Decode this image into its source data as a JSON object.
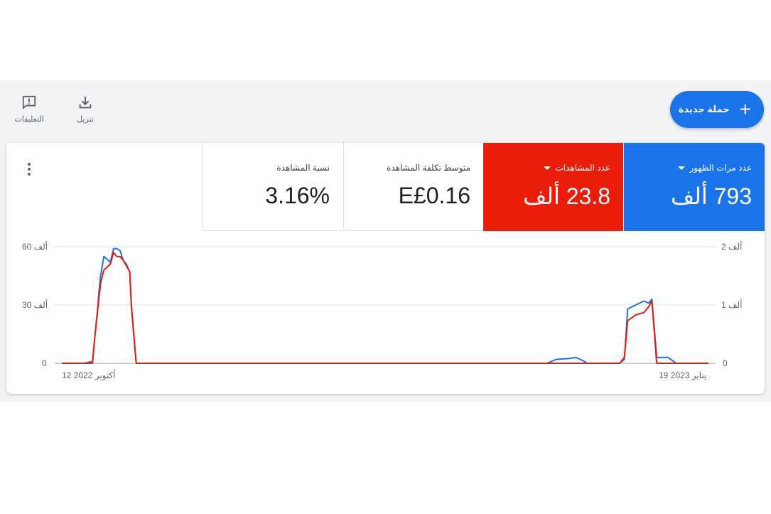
{
  "toolbar": {
    "new_campaign_label": "حملة جديدة",
    "download_label": "تنزيل",
    "feedback_label": "التعليقات"
  },
  "metrics": [
    {
      "label": "عدد مرات الظهور",
      "value": "793 ألف",
      "color": "#1a73e8",
      "has_dropdown": true
    },
    {
      "label": "عدد المشاهدات",
      "value": "23.8 ألف",
      "color": "#ea1c0a",
      "has_dropdown": true
    },
    {
      "label": "متوسط تكلفة المشاهدة",
      "value": "E£0.16"
    },
    {
      "label": "نسبة المشاهدة",
      "value": "3.16%"
    }
  ],
  "chart_data": {
    "type": "line",
    "x_start_label": "12 أكتوبر 2022",
    "x_end_label": "19 يناير 2023",
    "left_axis_ticks": [
      "60 ألف",
      "30 ألف",
      "0"
    ],
    "right_axis_ticks": [
      "2 ألف",
      "1 ألف",
      "0"
    ],
    "left_ylim": [
      0,
      60000
    ],
    "right_ylim": [
      0,
      2000
    ],
    "series": [
      {
        "axis": "left",
        "color": "#1a73e8",
        "points": [
          [
            0,
            0
          ],
          [
            14,
            0
          ],
          [
            19,
            1000
          ],
          [
            20,
            10000
          ],
          [
            22,
            27000
          ],
          [
            23,
            37000
          ],
          [
            24,
            45000
          ],
          [
            26,
            55000
          ],
          [
            30,
            52000
          ],
          [
            32,
            59000
          ],
          [
            34,
            59000
          ],
          [
            36,
            58000
          ],
          [
            38,
            53000
          ],
          [
            40,
            51000
          ],
          [
            42,
            47000
          ],
          [
            43,
            30000
          ],
          [
            45,
            10000
          ],
          [
            46,
            0
          ],
          [
            300,
            0
          ],
          [
            306,
            2000
          ],
          [
            314,
            2500
          ],
          [
            318,
            3000
          ],
          [
            322,
            1500
          ],
          [
            325,
            0
          ],
          [
            345,
            0
          ],
          [
            348,
            2000
          ],
          [
            350,
            28000
          ],
          [
            355,
            30000
          ],
          [
            360,
            32000
          ],
          [
            363,
            31000
          ],
          [
            365,
            33000
          ],
          [
            368,
            3000
          ],
          [
            375,
            3000
          ],
          [
            380,
            0
          ],
          [
            400,
            0
          ]
        ]
      },
      {
        "axis": "right",
        "color": "#ea1c0a",
        "points": [
          [
            0,
            0
          ],
          [
            14,
            0
          ],
          [
            19,
            0
          ],
          [
            20,
            330
          ],
          [
            22,
            870
          ],
          [
            23,
            1130
          ],
          [
            24,
            1370
          ],
          [
            26,
            1600
          ],
          [
            30,
            1700
          ],
          [
            32,
            1900
          ],
          [
            34,
            1830
          ],
          [
            36,
            1830
          ],
          [
            38,
            1770
          ],
          [
            40,
            1670
          ],
          [
            42,
            1570
          ],
          [
            43,
            1000
          ],
          [
            45,
            330
          ],
          [
            46,
            0
          ],
          [
            345,
            0
          ],
          [
            348,
            100
          ],
          [
            350,
            730
          ],
          [
            355,
            830
          ],
          [
            360,
            870
          ],
          [
            363,
            970
          ],
          [
            365,
            1070
          ],
          [
            368,
            0
          ],
          [
            375,
            0
          ],
          [
            380,
            0
          ],
          [
            400,
            0
          ]
        ]
      }
    ]
  }
}
